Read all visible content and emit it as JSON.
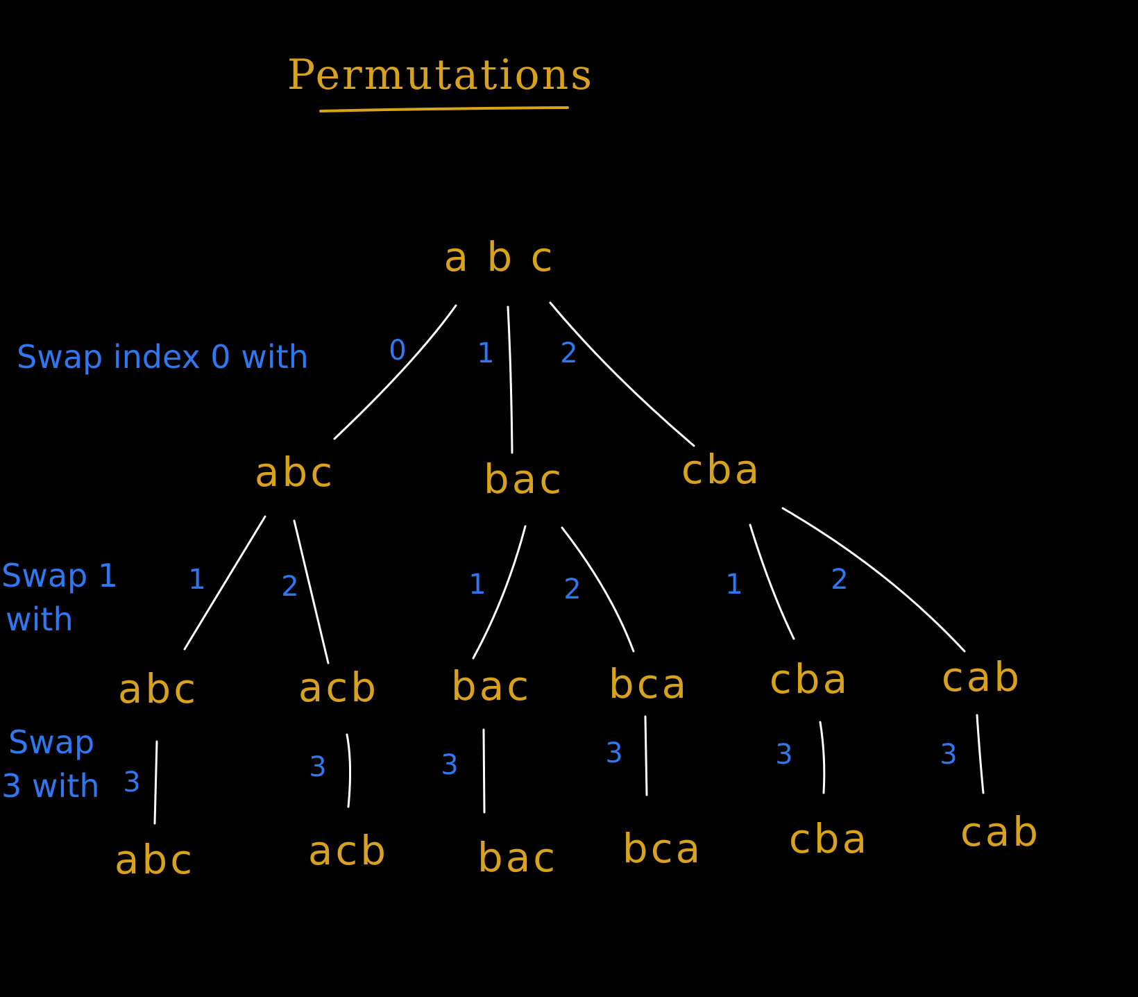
{
  "title": "Permutations",
  "colors": {
    "background": "#000000",
    "node_text": "#d9a21b",
    "edge_label": "#2f78f2",
    "edge_line": "#ffffff",
    "title_underline": "#d9a21b"
  },
  "tree": {
    "root": {
      "label": "a b c"
    },
    "level1": [
      {
        "label": "abc",
        "edge_label": "0"
      },
      {
        "label": "bac",
        "edge_label": "1"
      },
      {
        "label": "cba",
        "edge_label": "2"
      }
    ],
    "level2": [
      {
        "label": "abc",
        "edge_label": "1"
      },
      {
        "label": "acb",
        "edge_label": "2"
      },
      {
        "label": "bac",
        "edge_label": "1"
      },
      {
        "label": "bca",
        "edge_label": "2"
      },
      {
        "label": "cba",
        "edge_label": "1"
      },
      {
        "label": "cab",
        "edge_label": "2"
      }
    ],
    "level3": [
      {
        "label": "abc",
        "edge_label": "3"
      },
      {
        "label": "acb",
        "edge_label": "3"
      },
      {
        "label": "bac",
        "edge_label": "3"
      },
      {
        "label": "bca",
        "edge_label": "3"
      },
      {
        "label": "cba",
        "edge_label": "3"
      },
      {
        "label": "cab",
        "edge_label": "3"
      }
    ]
  },
  "notes": {
    "level1": [
      "Swap index 0 with"
    ],
    "level2": [
      "Swap 1",
      "with"
    ],
    "level3": [
      "Swap",
      "3 with"
    ]
  }
}
